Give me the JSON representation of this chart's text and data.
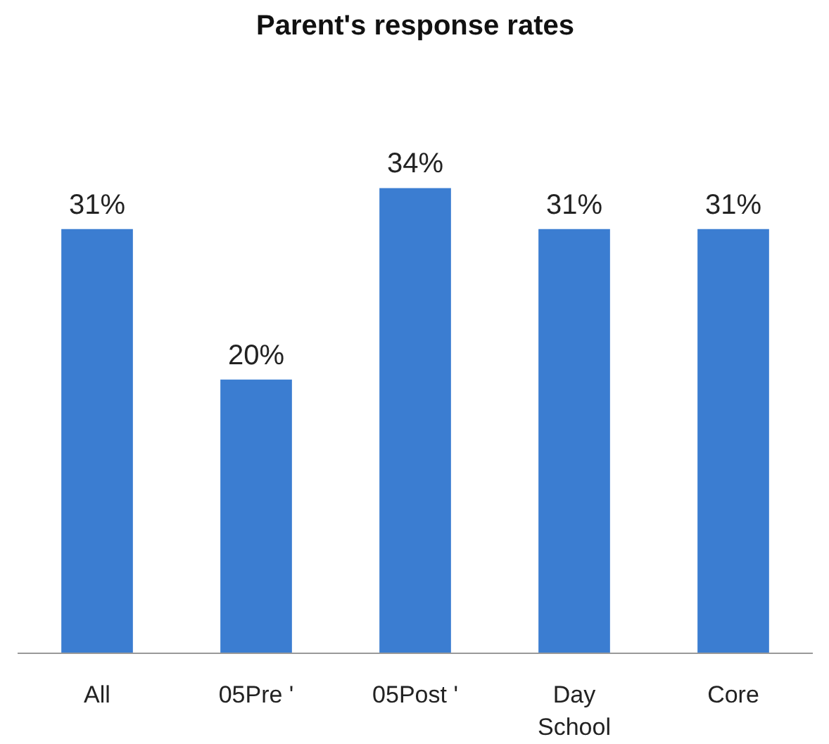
{
  "chart_data": {
    "type": "bar",
    "title": "Parent's response rates",
    "categories": [
      "All",
      "05Pre '",
      "05Post '",
      "Day School",
      "Core"
    ],
    "values": [
      31,
      20,
      34,
      31,
      31
    ],
    "value_labels": [
      "31%",
      "20%",
      "34%",
      "31%",
      "31%"
    ],
    "color": "#3b7dd1",
    "grid": false
  }
}
